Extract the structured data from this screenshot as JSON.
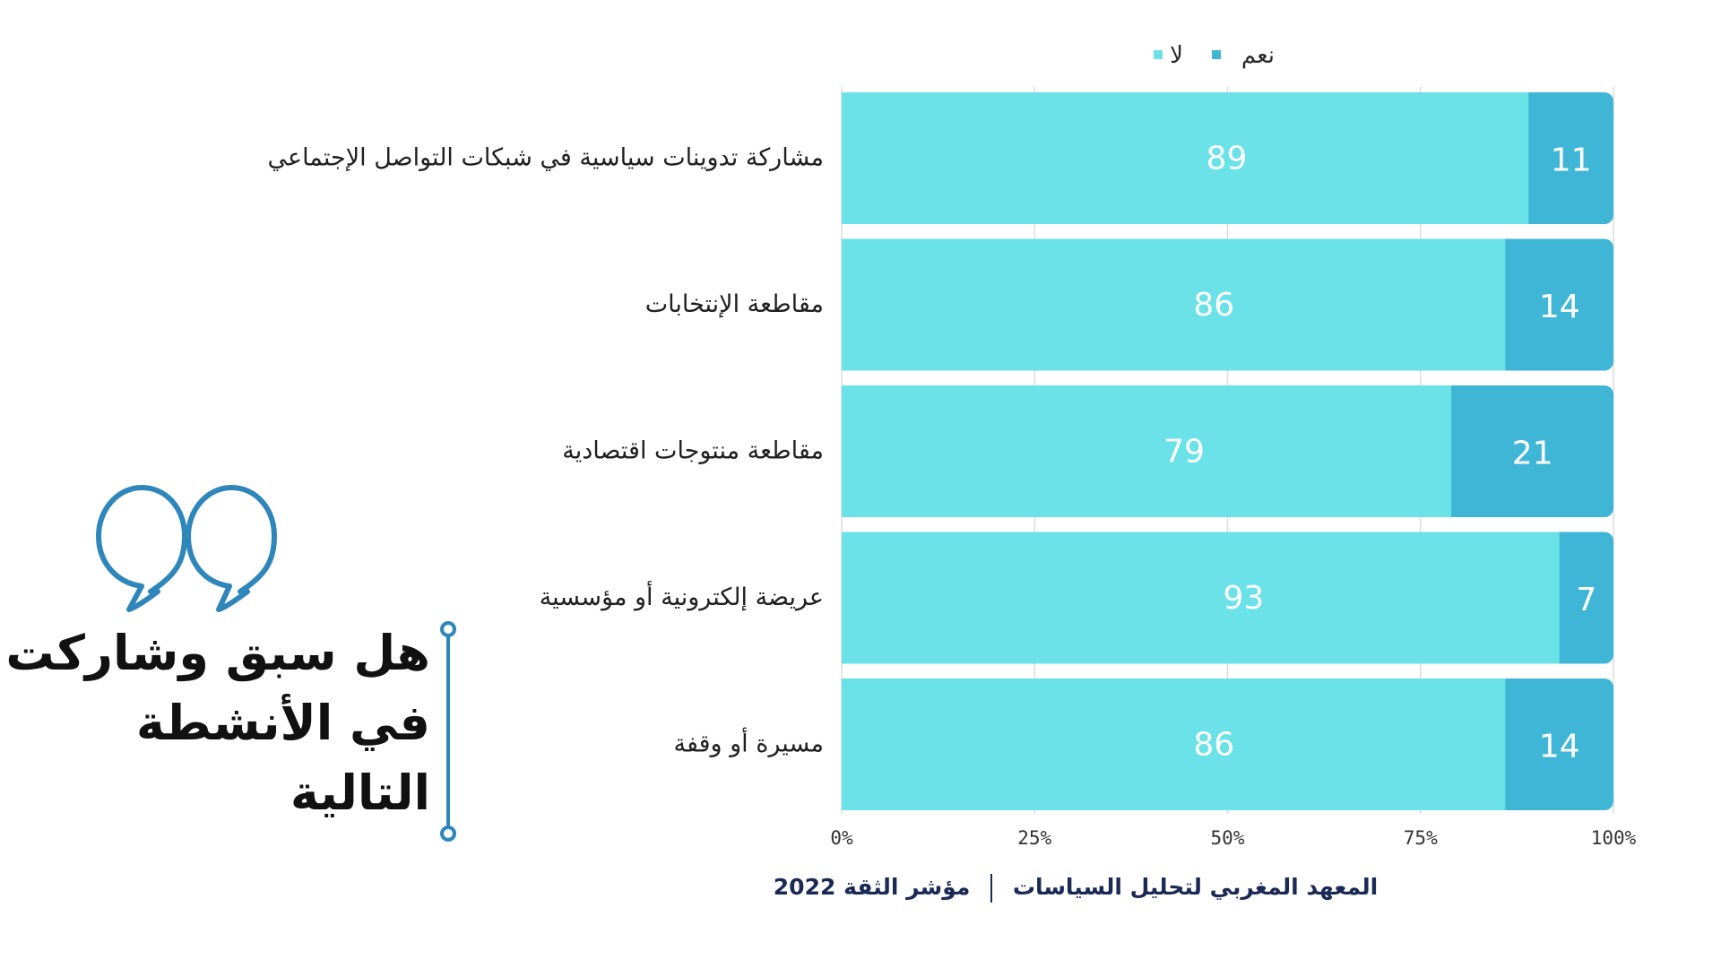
{
  "question": {
    "lines": [
      "هل سبق وشاركت",
      "في الأنشطة",
      "التالية"
    ]
  },
  "footer": {
    "institute": "المعهد المغربي لتحليل السياسات",
    "index": "مؤشر الثقة 2022"
  },
  "colors": {
    "no": "#6ae2e8",
    "yes": "#40b6d7",
    "accent": "#2e86bb",
    "footer_text": "#1b2a55"
  },
  "chart_data": {
    "type": "bar",
    "orientation": "horizontal",
    "stacked": true,
    "categories": [
      "مشاركة تدوينات سياسية في شبكات التواصل الإجتماعي",
      "مقاطعة الإنتخابات",
      "مقاطعة منتوجات اقتصادية",
      "عريضة إلكترونية أو مؤسسية",
      "مسيرة أو وقفة"
    ],
    "series": [
      {
        "name": "لا",
        "values": [
          89,
          86,
          79,
          93,
          86
        ]
      },
      {
        "name": "نعم",
        "values": [
          11,
          14,
          21,
          7,
          14
        ]
      }
    ],
    "xlim": [
      0,
      100
    ],
    "xticks": [
      "0%",
      "25%",
      "50%",
      "75%",
      "100%"
    ],
    "grid": true,
    "legend": "top"
  }
}
